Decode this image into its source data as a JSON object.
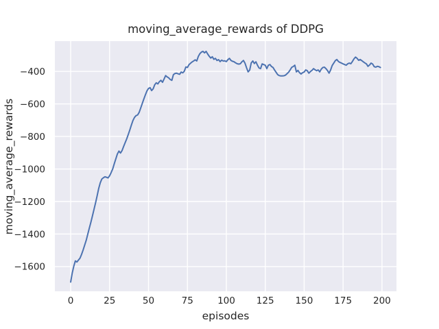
{
  "chart_data": {
    "type": "line",
    "title": "moving_average_rewards of DDPG",
    "xlabel": "episodes",
    "ylabel": "moving_average_rewards",
    "xlim": [
      -10.15,
      209.3
    ],
    "ylim": [
      -1752,
      -214
    ],
    "xticks": [
      0,
      25,
      50,
      75,
      100,
      125,
      150,
      175,
      200
    ],
    "yticks": [
      -400,
      -600,
      -800,
      -1000,
      -1200,
      -1400,
      -1600
    ],
    "grid": true,
    "legend": false,
    "colors": {
      "line": "#4c72b0",
      "background": "#eaeaf2",
      "grid": "#ffffff",
      "text": "#262626",
      "figure": "#ffffff"
    },
    "series": [
      {
        "name": "moving_average_rewards",
        "x_start": 0,
        "x_step": 1,
        "values": [
          -1695,
          -1640,
          -1598,
          -1565,
          -1572,
          -1560,
          -1548,
          -1525,
          -1498,
          -1468,
          -1438,
          -1400,
          -1363,
          -1327,
          -1288,
          -1248,
          -1208,
          -1165,
          -1120,
          -1085,
          -1062,
          -1054,
          -1048,
          -1051,
          -1055,
          -1042,
          -1022,
          -1000,
          -968,
          -938,
          -908,
          -890,
          -902,
          -887,
          -862,
          -838,
          -815,
          -788,
          -760,
          -730,
          -702,
          -683,
          -672,
          -668,
          -652,
          -625,
          -597,
          -570,
          -544,
          -520,
          -505,
          -500,
          -518,
          -507,
          -482,
          -470,
          -477,
          -463,
          -455,
          -467,
          -447,
          -426,
          -434,
          -440,
          -450,
          -455,
          -420,
          -413,
          -411,
          -415,
          -418,
          -404,
          -409,
          -399,
          -373,
          -376,
          -359,
          -350,
          -342,
          -336,
          -329,
          -336,
          -308,
          -291,
          -281,
          -277,
          -286,
          -277,
          -293,
          -307,
          -318,
          -310,
          -326,
          -320,
          -333,
          -328,
          -340,
          -331,
          -336,
          -335,
          -340,
          -328,
          -320,
          -333,
          -338,
          -341,
          -348,
          -353,
          -355,
          -353,
          -341,
          -333,
          -350,
          -378,
          -403,
          -392,
          -348,
          -336,
          -352,
          -341,
          -362,
          -379,
          -383,
          -354,
          -358,
          -362,
          -383,
          -362,
          -358,
          -370,
          -376,
          -392,
          -406,
          -420,
          -426,
          -428,
          -428,
          -427,
          -423,
          -414,
          -405,
          -391,
          -375,
          -370,
          -362,
          -403,
          -394,
          -408,
          -416,
          -408,
          -404,
          -391,
          -396,
          -411,
          -401,
          -394,
          -383,
          -390,
          -396,
          -391,
          -403,
          -386,
          -376,
          -374,
          -383,
          -395,
          -411,
          -391,
          -364,
          -349,
          -334,
          -327,
          -339,
          -345,
          -349,
          -354,
          -358,
          -362,
          -353,
          -349,
          -353,
          -339,
          -323,
          -312,
          -320,
          -332,
          -327,
          -334,
          -341,
          -348,
          -354,
          -369,
          -361,
          -349,
          -355,
          -371,
          -374,
          -369,
          -371,
          -376
        ]
      }
    ]
  }
}
